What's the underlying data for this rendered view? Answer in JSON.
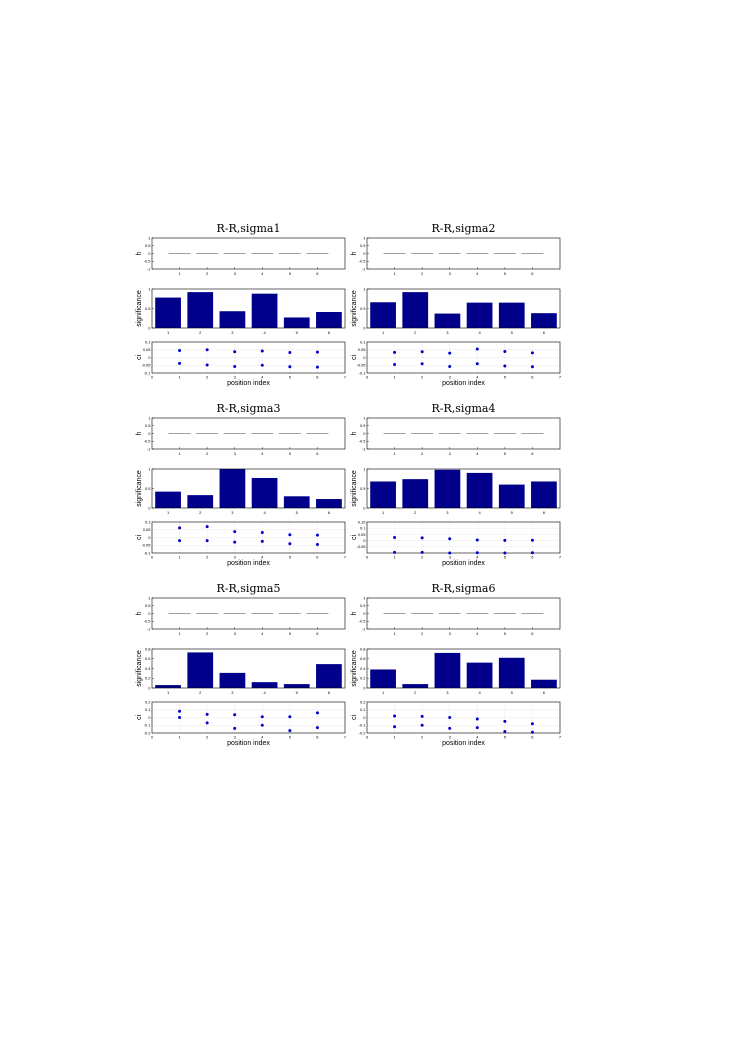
{
  "chart_data": [
    {
      "title": "R-R,sigma1",
      "subplots": {
        "h": {
          "type": "line",
          "ylabel": "h",
          "x": [
            1,
            2,
            3,
            4,
            5,
            6
          ],
          "values": [
            0,
            0,
            0,
            0,
            0,
            0
          ],
          "ylim": [
            -1,
            1
          ],
          "yticks": [
            "-1",
            "-0.5",
            "0",
            "0.5",
            "1"
          ],
          "xticks": [
            "1",
            "2",
            "3",
            "4",
            "5",
            "6"
          ]
        },
        "significance": {
          "type": "bar",
          "ylabel": "significance",
          "categories": [
            "1",
            "2",
            "3",
            "4",
            "5",
            "6"
          ],
          "values": [
            0.78,
            0.92,
            0.43,
            0.88,
            0.27,
            0.41
          ],
          "ylim": [
            0,
            1
          ],
          "yticks": [
            "0",
            "0.5",
            "1"
          ]
        },
        "ci": {
          "type": "scatter",
          "ylabel": "ci",
          "xlabel": "position index",
          "x": [
            1,
            2,
            3,
            4,
            5,
            6
          ],
          "upper": [
            0.045,
            0.05,
            0.037,
            0.042,
            0.032,
            0.035
          ],
          "lower": [
            -0.038,
            -0.048,
            -0.058,
            -0.05,
            -0.06,
            -0.062
          ],
          "ylim": [
            -0.1,
            0.1
          ],
          "yticks": [
            "-0.1",
            "-0.05",
            "0",
            "0.05",
            "0.1"
          ],
          "xticks": [
            "0",
            "1",
            "2",
            "3",
            "4",
            "5",
            "6",
            "7"
          ],
          "grid": true
        }
      }
    },
    {
      "title": "R-R,sigma2",
      "subplots": {
        "h": {
          "type": "line",
          "ylabel": "h",
          "x": [
            1,
            2,
            3,
            4,
            5,
            6
          ],
          "values": [
            0,
            0,
            0,
            0,
            0,
            0
          ],
          "ylim": [
            -1,
            1
          ],
          "yticks": [
            "-1",
            "-0.5",
            "0",
            "0.5",
            "1"
          ],
          "xticks": [
            "1",
            "2",
            "3",
            "4",
            "5",
            "6"
          ]
        },
        "significance": {
          "type": "bar",
          "ylabel": "significance",
          "categories": [
            "1",
            "2",
            "3",
            "4",
            "5",
            "6"
          ],
          "values": [
            0.66,
            0.92,
            0.37,
            0.65,
            0.65,
            0.38
          ],
          "ylim": [
            0,
            1
          ],
          "yticks": [
            "0",
            "0.5",
            "1"
          ]
        },
        "ci": {
          "type": "scatter",
          "ylabel": "ci",
          "xlabel": "position index",
          "x": [
            1,
            2,
            3,
            4,
            5,
            6
          ],
          "upper": [
            0.033,
            0.037,
            0.028,
            0.055,
            0.039,
            0.03
          ],
          "lower": [
            -0.045,
            -0.04,
            -0.058,
            -0.04,
            -0.055,
            -0.06
          ],
          "ylim": [
            -0.1,
            0.1
          ],
          "yticks": [
            "-0.1",
            "-0.05",
            "0",
            "0.05",
            "0.1"
          ],
          "xticks": [
            "0",
            "1",
            "2",
            "3",
            "4",
            "5",
            "6",
            "7"
          ],
          "grid": true
        }
      }
    },
    {
      "title": "R-R,sigma3",
      "subplots": {
        "h": {
          "type": "line",
          "ylabel": "h",
          "x": [
            1,
            2,
            3,
            4,
            5,
            6
          ],
          "values": [
            0,
            0,
            0,
            0,
            0,
            0
          ],
          "ylim": [
            -1,
            1
          ],
          "yticks": [
            "-1",
            "-0.5",
            "0",
            "0.5",
            "1"
          ],
          "xticks": [
            "1",
            "2",
            "3",
            "4",
            "5",
            "6"
          ]
        },
        "significance": {
          "type": "bar",
          "ylabel": "significance",
          "categories": [
            "1",
            "2",
            "3",
            "4",
            "5",
            "6"
          ],
          "values": [
            0.42,
            0.33,
            1.0,
            0.77,
            0.3,
            0.23
          ],
          "ylim": [
            0,
            1
          ],
          "yticks": [
            "0",
            "0.5",
            "1"
          ]
        },
        "ci": {
          "type": "scatter",
          "ylabel": "ci",
          "xlabel": "position index",
          "x": [
            1,
            2,
            3,
            4,
            5,
            6
          ],
          "upper": [
            0.062,
            0.07,
            0.038,
            0.032,
            0.018,
            0.015
          ],
          "lower": [
            -0.02,
            -0.02,
            -0.03,
            -0.025,
            -0.04,
            -0.045
          ],
          "ylim": [
            -0.1,
            0.1
          ],
          "yticks": [
            "-0.1",
            "-0.05",
            "0",
            "0.05",
            "0.1"
          ],
          "xticks": [
            "0",
            "1",
            "2",
            "3",
            "4",
            "5",
            "6",
            "7"
          ],
          "grid": true
        }
      }
    },
    {
      "title": "R-R,sigma4",
      "subplots": {
        "h": {
          "type": "line",
          "ylabel": "h",
          "x": [
            1,
            2,
            3,
            4,
            5,
            6
          ],
          "values": [
            0,
            0,
            0,
            0,
            0,
            0
          ],
          "ylim": [
            -1,
            1
          ],
          "yticks": [
            "-1",
            "-0.5",
            "0",
            "0.5",
            "1"
          ],
          "xticks": [
            "1",
            "2",
            "3",
            "4",
            "5",
            "6"
          ]
        },
        "significance": {
          "type": "bar",
          "ylabel": "significance",
          "categories": [
            "1",
            "2",
            "3",
            "4",
            "5",
            "6"
          ],
          "values": [
            0.68,
            0.74,
            0.98,
            0.9,
            0.6,
            0.68
          ],
          "ylim": [
            0,
            1
          ],
          "yticks": [
            "0",
            "0.5",
            "1"
          ]
        },
        "ci": {
          "type": "scatter",
          "ylabel": "ci",
          "xlabel": "position index",
          "x": [
            1,
            2,
            3,
            4,
            5,
            6
          ],
          "upper": [
            0.025,
            0.022,
            0.015,
            0.005,
            0.002,
            0.003
          ],
          "lower": [
            -0.095,
            -0.095,
            -0.1,
            -0.098,
            -0.1,
            -0.098
          ],
          "ylim": [
            -0.1,
            0.15
          ],
          "yticks": [
            "-0.05",
            "0",
            "0.05",
            "0.1",
            "0.15"
          ],
          "xticks": [
            "0",
            "1",
            "2",
            "3",
            "4",
            "5",
            "6",
            "7"
          ],
          "grid": true
        }
      }
    },
    {
      "title": "R-R,sigma5",
      "subplots": {
        "h": {
          "type": "line",
          "ylabel": "h",
          "x": [
            1,
            2,
            3,
            4,
            5,
            6
          ],
          "values": [
            0,
            0,
            0,
            0,
            0,
            0
          ],
          "ylim": [
            -1,
            1
          ],
          "yticks": [
            "-1",
            "-0.5",
            "0",
            "0.5",
            "1"
          ],
          "xticks": [
            "1",
            "2",
            "3",
            "4",
            "5",
            "6"
          ]
        },
        "significance": {
          "type": "bar",
          "ylabel": "significance",
          "categories": [
            "1",
            "2",
            "3",
            "4",
            "5",
            "6"
          ],
          "values": [
            0.06,
            0.73,
            0.31,
            0.12,
            0.08,
            0.49
          ],
          "ylim": [
            0,
            0.8
          ],
          "yticks": [
            "0",
            "0.2",
            "0.4",
            "0.6",
            "0.8"
          ]
        },
        "ci": {
          "type": "scatter",
          "ylabel": "ci",
          "xlabel": "position index",
          "x": [
            1,
            2,
            3,
            4,
            5,
            6
          ],
          "upper": [
            0.08,
            0.04,
            0.035,
            0.01,
            0.01,
            0.06
          ],
          "lower": [
            0.0,
            -0.07,
            -0.14,
            -0.1,
            -0.17,
            -0.13
          ],
          "ylim": [
            -0.2,
            0.2
          ],
          "yticks": [
            "-0.2",
            "-0.1",
            "0",
            "0.1",
            "0.2"
          ],
          "xticks": [
            "0",
            "1",
            "2",
            "3",
            "4",
            "5",
            "6",
            "7"
          ],
          "grid": true
        }
      }
    },
    {
      "title": "R-R,sigma6",
      "subplots": {
        "h": {
          "type": "line",
          "ylabel": "h",
          "x": [
            1,
            2,
            3,
            4,
            5,
            6
          ],
          "values": [
            0,
            0,
            0,
            0,
            0,
            0
          ],
          "ylim": [
            -1,
            1
          ],
          "yticks": [
            "-1",
            "-0.5",
            "0",
            "0.5",
            "1"
          ],
          "xticks": [
            "1",
            "2",
            "3",
            "4",
            "5",
            "6"
          ]
        },
        "significance": {
          "type": "bar",
          "ylabel": "significance",
          "categories": [
            "1",
            "2",
            "3",
            "4",
            "5",
            "6"
          ],
          "values": [
            0.38,
            0.08,
            0.72,
            0.52,
            0.62,
            0.17
          ],
          "ylim": [
            0,
            0.8
          ],
          "yticks": [
            "0",
            "0.2",
            "0.4",
            "0.6",
            "0.8"
          ]
        },
        "ci": {
          "type": "scatter",
          "ylabel": "ci",
          "xlabel": "position index",
          "x": [
            1,
            2,
            3,
            4,
            5,
            6
          ],
          "upper": [
            0.02,
            0.015,
            0.0,
            -0.02,
            -0.05,
            -0.08
          ],
          "lower": [
            -0.12,
            -0.1,
            -0.14,
            -0.13,
            -0.18,
            -0.19
          ],
          "ylim": [
            -0.2,
            0.2
          ],
          "yticks": [
            "-0.2",
            "-0.1",
            "0",
            "0.1",
            "0.2"
          ],
          "xticks": [
            "0",
            "1",
            "2",
            "3",
            "4",
            "5",
            "6",
            "7"
          ],
          "grid": true
        }
      }
    }
  ],
  "colors": {
    "bar": "#00008b",
    "marker": "#0000cc",
    "hline": "#808080",
    "grid": "#b8b8b8",
    "axis": "#000000"
  }
}
